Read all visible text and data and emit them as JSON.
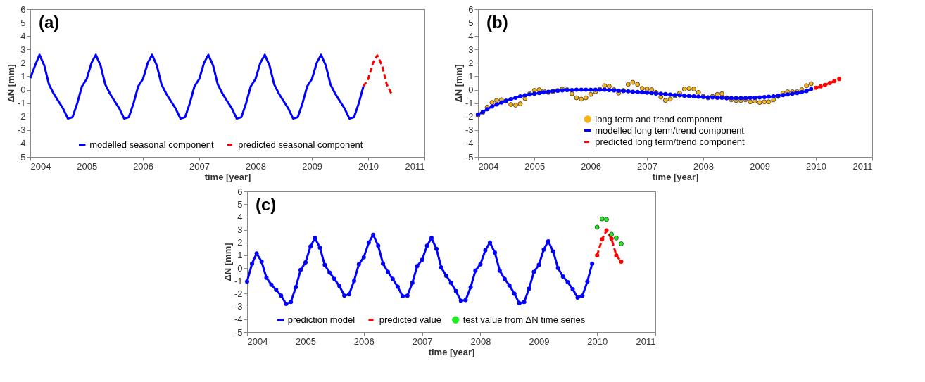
{
  "chart_data": [
    {
      "type": "line",
      "title": "(a)",
      "xlabel": "time [year]",
      "ylabel": "ΔN [mm]",
      "xlim": [
        "2004",
        "2011"
      ],
      "xticks": [
        "2004",
        "2005",
        "2006",
        "2007",
        "2008",
        "2009",
        "2010",
        "2011"
      ],
      "ylim": [
        -5,
        6
      ],
      "yticks": [
        -5,
        -4,
        -3,
        -2,
        -1,
        0,
        1,
        2,
        3,
        4,
        5,
        6
      ],
      "legend": "bottom",
      "x": [
        "2004-01",
        "2004-02",
        "2004-03",
        "2004-04",
        "2004-05",
        "2004-06",
        "2004-07",
        "2004-08",
        "2004-09",
        "2004-10",
        "2004-11",
        "2004-12",
        "2005-01",
        "2005-02",
        "2005-03",
        "2005-04",
        "2005-05",
        "2005-06",
        "2005-07",
        "2005-08",
        "2005-09",
        "2005-10",
        "2005-11",
        "2005-12",
        "2006-01",
        "2006-02",
        "2006-03",
        "2006-04",
        "2006-05",
        "2006-06",
        "2006-07",
        "2006-08",
        "2006-09",
        "2006-10",
        "2006-11",
        "2006-12",
        "2007-01",
        "2007-02",
        "2007-03",
        "2007-04",
        "2007-05",
        "2007-06",
        "2007-07",
        "2007-08",
        "2007-09",
        "2007-10",
        "2007-11",
        "2007-12",
        "2008-01",
        "2008-02",
        "2008-03",
        "2008-04",
        "2008-05",
        "2008-06",
        "2008-07",
        "2008-08",
        "2008-09",
        "2008-10",
        "2008-11",
        "2008-12",
        "2009-01",
        "2009-02",
        "2009-03",
        "2009-04",
        "2009-05",
        "2009-06",
        "2009-07",
        "2009-08",
        "2009-09",
        "2009-10",
        "2009-11",
        "2009-12"
      ],
      "series": [
        {
          "name": "modelled seasonal component",
          "color": "#0000ff",
          "marker": "none",
          "line_style": "solid",
          "values": [
            0.85,
            1.8,
            2.6,
            1.8,
            0.4,
            -0.3,
            -0.85,
            -1.4,
            -2.15,
            -2.05,
            -1.0,
            0.25,
            0.8,
            2.0,
            2.6,
            1.8,
            0.4,
            -0.3,
            -0.85,
            -1.4,
            -2.15,
            -2.05,
            -1.0,
            0.25,
            0.8,
            2.0,
            2.6,
            1.8,
            0.4,
            -0.3,
            -0.85,
            -1.4,
            -2.15,
            -2.05,
            -1.0,
            0.25,
            0.8,
            2.0,
            2.6,
            1.8,
            0.4,
            -0.3,
            -0.85,
            -1.4,
            -2.15,
            -2.05,
            -1.0,
            0.25,
            0.8,
            2.0,
            2.6,
            1.8,
            0.4,
            -0.3,
            -0.85,
            -1.4,
            -2.15,
            -2.05,
            -1.0,
            0.25,
            0.8,
            2.0,
            2.6,
            1.8,
            0.4,
            -0.3,
            -0.85,
            -1.4,
            -2.15,
            -2.05,
            -1.0,
            0.25
          ]
        },
        {
          "name": "predicted seasonal component",
          "color": "#ff0000",
          "marker": "none",
          "line_style": "dashed",
          "x": [
            "2009-12",
            "2010-01",
            "2010-02",
            "2010-03",
            "2010-04",
            "2010-05",
            "2010-06"
          ],
          "values": [
            0.25,
            0.8,
            2.0,
            2.55,
            1.8,
            0.4,
            -0.3
          ]
        }
      ]
    },
    {
      "type": "line",
      "title": "(b)",
      "xlabel": "time [year]",
      "ylabel": "ΔN [mm]",
      "xlim": [
        "2004",
        "2011"
      ],
      "xticks": [
        "2004",
        "2005",
        "2006",
        "2007",
        "2008",
        "2009",
        "2010",
        "2011"
      ],
      "ylim": [
        -5,
        6
      ],
      "yticks": [
        -5,
        -4,
        -3,
        -2,
        -1,
        0,
        1,
        2,
        3,
        4,
        5,
        6
      ],
      "legend": "bottom",
      "x": [
        "2004-01",
        "2004-02",
        "2004-03",
        "2004-04",
        "2004-05",
        "2004-06",
        "2004-07",
        "2004-08",
        "2004-09",
        "2004-10",
        "2004-11",
        "2004-12",
        "2005-01",
        "2005-02",
        "2005-03",
        "2005-04",
        "2005-05",
        "2005-06",
        "2005-07",
        "2005-08",
        "2005-09",
        "2005-10",
        "2005-11",
        "2005-12",
        "2006-01",
        "2006-02",
        "2006-03",
        "2006-04",
        "2006-05",
        "2006-06",
        "2006-07",
        "2006-08",
        "2006-09",
        "2006-10",
        "2006-11",
        "2006-12",
        "2007-01",
        "2007-02",
        "2007-03",
        "2007-04",
        "2007-05",
        "2007-06",
        "2007-07",
        "2007-08",
        "2007-09",
        "2007-10",
        "2007-11",
        "2007-12",
        "2008-01",
        "2008-02",
        "2008-03",
        "2008-04",
        "2008-05",
        "2008-06",
        "2008-07",
        "2008-08",
        "2008-09",
        "2008-10",
        "2008-11",
        "2008-12",
        "2009-01",
        "2009-02",
        "2009-03",
        "2009-04",
        "2009-05",
        "2009-06",
        "2009-07",
        "2009-08",
        "2009-09",
        "2009-10",
        "2009-11",
        "2009-12"
      ],
      "series": [
        {
          "name": "long term and trend component",
          "type": "scatter",
          "color": "#f5b31b",
          "marker": "circle",
          "values": [
            -1.9,
            -1.7,
            -1.3,
            -0.95,
            -0.8,
            -0.75,
            -0.85,
            -1.1,
            -1.15,
            -1.05,
            -0.65,
            -0.3,
            -0.05,
            0.0,
            -0.1,
            -0.2,
            -0.15,
            -0.05,
            0.05,
            0.0,
            -0.3,
            -0.6,
            -0.7,
            -0.6,
            -0.35,
            -0.15,
            0.05,
            0.3,
            0.25,
            0.0,
            -0.25,
            -0.05,
            0.4,
            0.55,
            0.4,
            0.1,
            0.05,
            0.0,
            -0.2,
            -0.55,
            -0.8,
            -0.7,
            -0.45,
            -0.25,
            0.05,
            0.1,
            0.05,
            -0.2,
            -0.5,
            -0.6,
            -0.5,
            -0.35,
            -0.3,
            -0.6,
            -0.75,
            -0.8,
            -0.8,
            -0.75,
            -0.9,
            -0.85,
            -0.95,
            -0.9,
            -0.9,
            -0.75,
            -0.5,
            -0.25,
            -0.15,
            -0.15,
            -0.15,
            0.0,
            0.3,
            0.45
          ]
        },
        {
          "name": "modelled long term/trend component",
          "color": "#0000ff",
          "marker": "circle",
          "line_style": "solid",
          "values": [
            -1.85,
            -1.65,
            -1.45,
            -1.25,
            -1.1,
            -0.95,
            -0.82,
            -0.7,
            -0.6,
            -0.5,
            -0.42,
            -0.35,
            -0.3,
            -0.25,
            -0.2,
            -0.15,
            -0.1,
            -0.07,
            -0.05,
            -0.03,
            -0.02,
            0.0,
            0.0,
            0.0,
            0.0,
            0.0,
            0.0,
            0.0,
            -0.02,
            -0.05,
            -0.07,
            -0.1,
            -0.12,
            -0.15,
            -0.17,
            -0.2,
            -0.22,
            -0.25,
            -0.28,
            -0.3,
            -0.33,
            -0.36,
            -0.4,
            -0.42,
            -0.45,
            -0.47,
            -0.5,
            -0.52,
            -0.55,
            -0.57,
            -0.58,
            -0.6,
            -0.6,
            -0.62,
            -0.62,
            -0.62,
            -0.62,
            -0.62,
            -0.6,
            -0.6,
            -0.58,
            -0.55,
            -0.52,
            -0.5,
            -0.45,
            -0.4,
            -0.35,
            -0.3,
            -0.25,
            -0.18,
            -0.1,
            0.05
          ]
        },
        {
          "name": "predicted long term/trend component",
          "color": "#ff0000",
          "marker": "circle",
          "line_style": "dashed",
          "x": [
            "2010-01",
            "2010-02",
            "2010-03",
            "2010-04",
            "2010-05",
            "2010-06"
          ],
          "values": [
            0.15,
            0.25,
            0.35,
            0.5,
            0.65,
            0.8
          ]
        }
      ]
    },
    {
      "type": "line",
      "title": "(c)",
      "xlabel": "time [year]",
      "ylabel": "ΔN [mm]",
      "xlim": [
        "2004",
        "2011"
      ],
      "xticks": [
        "2004",
        "2005",
        "2006",
        "2007",
        "2008",
        "2009",
        "2010",
        "2011"
      ],
      "ylim": [
        -5,
        6
      ],
      "yticks": [
        -5,
        -4,
        -3,
        -2,
        -1,
        0,
        1,
        2,
        3,
        4,
        5,
        6
      ],
      "legend": "bottom",
      "x": [
        "2004-01",
        "2004-02",
        "2004-03",
        "2004-04",
        "2004-05",
        "2004-06",
        "2004-07",
        "2004-08",
        "2004-09",
        "2004-10",
        "2004-11",
        "2004-12",
        "2005-01",
        "2005-02",
        "2005-03",
        "2005-04",
        "2005-05",
        "2005-06",
        "2005-07",
        "2005-08",
        "2005-09",
        "2005-10",
        "2005-11",
        "2005-12",
        "2006-01",
        "2006-02",
        "2006-03",
        "2006-04",
        "2006-05",
        "2006-06",
        "2006-07",
        "2006-08",
        "2006-09",
        "2006-10",
        "2006-11",
        "2006-12",
        "2007-01",
        "2007-02",
        "2007-03",
        "2007-04",
        "2007-05",
        "2007-06",
        "2007-07",
        "2007-08",
        "2007-09",
        "2007-10",
        "2007-11",
        "2007-12",
        "2008-01",
        "2008-02",
        "2008-03",
        "2008-04",
        "2008-05",
        "2008-06",
        "2008-07",
        "2008-08",
        "2008-09",
        "2008-10",
        "2008-11",
        "2008-12",
        "2009-01",
        "2009-02",
        "2009-03",
        "2009-04",
        "2009-05",
        "2009-06",
        "2009-07",
        "2009-08",
        "2009-09",
        "2009-10",
        "2009-11",
        "2009-12"
      ],
      "series": [
        {
          "name": "prediction model",
          "color": "#0000ff",
          "marker": "circle",
          "line_style": "solid",
          "values": [
            -1.05,
            0.35,
            1.15,
            0.5,
            -0.75,
            -1.3,
            -1.7,
            -2.15,
            -2.8,
            -2.65,
            -1.5,
            -0.15,
            0.45,
            1.7,
            2.35,
            1.6,
            0.25,
            -0.35,
            -0.85,
            -1.4,
            -2.15,
            -2.05,
            -1.0,
            0.3,
            0.85,
            2.0,
            2.6,
            1.75,
            0.35,
            -0.3,
            -0.85,
            -1.45,
            -2.2,
            -2.15,
            -1.15,
            0.15,
            0.65,
            1.75,
            2.35,
            1.5,
            0.05,
            -0.6,
            -1.15,
            -1.8,
            -2.55,
            -2.5,
            -1.5,
            -0.2,
            0.3,
            1.4,
            2.0,
            1.2,
            -0.2,
            -0.85,
            -1.35,
            -2.0,
            -2.75,
            -2.65,
            -1.6,
            -0.3,
            0.25,
            1.45,
            2.1,
            1.3,
            0.0,
            -0.65,
            -1.1,
            -1.65,
            -2.3,
            -2.15,
            -1.05,
            0.35
          ]
        },
        {
          "name": "predicted value",
          "color": "#ff0000",
          "marker": "circle",
          "line_style": "dashed",
          "x": [
            "2010-01",
            "2010-02",
            "2010-03",
            "2010-04",
            "2010-05",
            "2010-06"
          ],
          "values": [
            1.0,
            2.25,
            2.95,
            2.3,
            1.0,
            0.5
          ]
        },
        {
          "name": "test value from ΔN time series",
          "type": "scatter",
          "color": "#22ee22",
          "marker": "circle",
          "x": [
            "2010-01",
            "2010-02",
            "2010-03",
            "2010-04",
            "2010-05",
            "2010-06"
          ],
          "values": [
            3.2,
            3.85,
            3.8,
            2.65,
            2.35,
            1.9
          ]
        }
      ]
    }
  ]
}
